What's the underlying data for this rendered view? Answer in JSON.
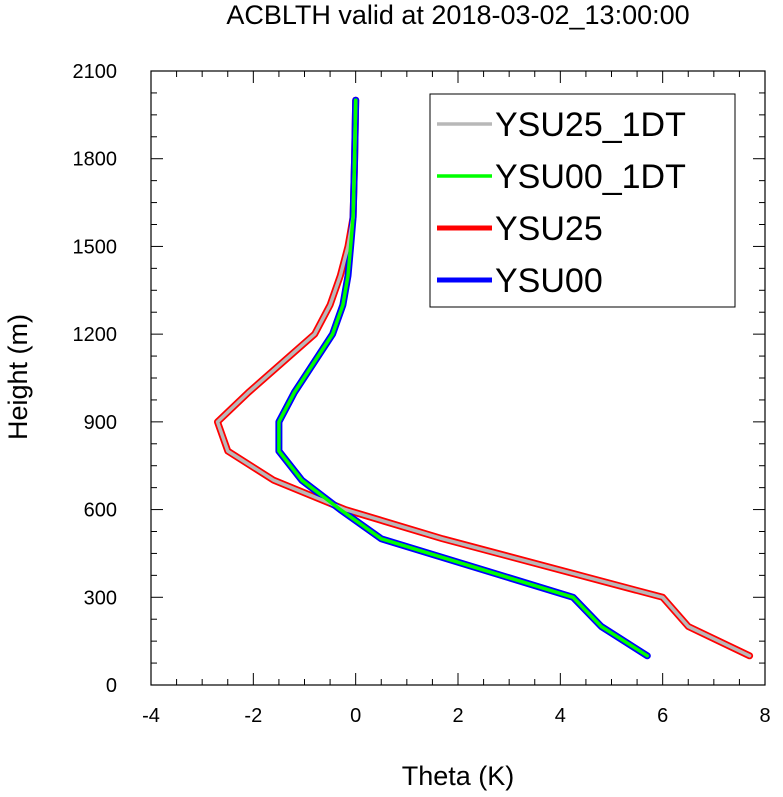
{
  "chart_data": {
    "type": "line",
    "title": "ACBLTH valid at 2018-03-02_13:00:00",
    "xlabel": "Theta (K)",
    "ylabel": "Height (m)",
    "xlim": [
      -4,
      8
    ],
    "ylim": [
      0,
      2100
    ],
    "xticks": [
      -4,
      -2,
      0,
      2,
      4,
      6,
      8
    ],
    "yticks": [
      0,
      300,
      600,
      900,
      1200,
      1500,
      1800,
      2100
    ],
    "xtick_labels": [
      "-4",
      "-2",
      "0",
      "2",
      "4",
      "6",
      "8"
    ],
    "ytick_labels": [
      "0",
      "300",
      "600",
      "900",
      "1200",
      "1500",
      "1800",
      "2100"
    ],
    "legend_position": "top-right",
    "grid": false,
    "series": [
      {
        "name": "YSU25_1DT",
        "color": "#b8b8b8",
        "x": [
          7.7,
          6.5,
          6.0,
          1.7,
          -0.2,
          -1.6,
          -2.5,
          -2.7,
          -2.1,
          -0.8,
          -0.5,
          -0.3,
          -0.15,
          -0.05,
          -0.02,
          0.0
        ],
        "y": [
          100,
          200,
          300,
          500,
          600,
          700,
          800,
          900,
          1000,
          1200,
          1300,
          1400,
          1500,
          1600,
          1800,
          2000
        ]
      },
      {
        "name": "YSU00_1DT",
        "color": "#00ff00",
        "x": [
          5.7,
          4.8,
          4.25,
          0.5,
          -0.3,
          -1.05,
          -1.5,
          -1.5,
          -1.2,
          -0.45,
          -0.25,
          -0.15,
          -0.1,
          -0.05,
          -0.02,
          0.0
        ],
        "y": [
          100,
          200,
          300,
          500,
          600,
          700,
          800,
          900,
          1000,
          1200,
          1300,
          1400,
          1500,
          1600,
          1800,
          2000
        ]
      },
      {
        "name": "YSU25",
        "color": "#ff0000",
        "x": [
          7.7,
          6.5,
          6.0,
          1.7,
          -0.2,
          -1.6,
          -2.5,
          -2.7,
          -2.1,
          -0.8,
          -0.5,
          -0.3,
          -0.15,
          -0.05,
          -0.02,
          0.0
        ],
        "y": [
          100,
          200,
          300,
          500,
          600,
          700,
          800,
          900,
          1000,
          1200,
          1300,
          1400,
          1500,
          1600,
          1800,
          2000
        ]
      },
      {
        "name": "YSU00",
        "color": "#0000ff",
        "x": [
          5.7,
          4.8,
          4.25,
          0.5,
          -0.3,
          -1.05,
          -1.5,
          -1.5,
          -1.2,
          -0.45,
          -0.25,
          -0.15,
          -0.1,
          -0.05,
          -0.02,
          0.0
        ],
        "y": [
          100,
          200,
          300,
          500,
          600,
          700,
          800,
          900,
          1000,
          1200,
          1300,
          1400,
          1500,
          1600,
          1800,
          2000
        ]
      }
    ],
    "legend_order": [
      "YSU25_1DT",
      "YSU00_1DT",
      "YSU25",
      "YSU00"
    ]
  }
}
